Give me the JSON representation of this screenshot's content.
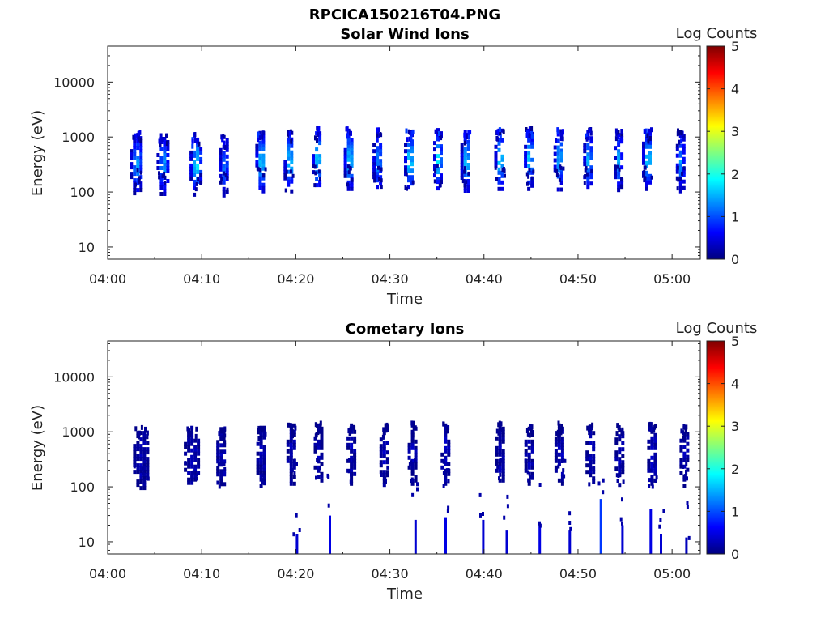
{
  "figure_title": "RPCICA150216T04.PNG",
  "colorbar": {
    "label": "Log Counts",
    "min": 0,
    "max": 5,
    "tick_labels": [
      "0",
      "1",
      "2",
      "3",
      "4",
      "5"
    ],
    "colormap": "jet",
    "stops": [
      "#00007f",
      "#0000ff",
      "#0080ff",
      "#00ffff",
      "#80ff80",
      "#ffff00",
      "#ff8000",
      "#ff0000",
      "#7f0000"
    ]
  },
  "chart_data": [
    {
      "type": "heatmap",
      "title": "Solar Wind Ions",
      "xlabel": "Time",
      "ylabel": "Energy (eV)",
      "x_range_minutes": [
        0,
        63
      ],
      "x_tick_labels": [
        "04:00",
        "04:10",
        "04:20",
        "04:30",
        "04:40",
        "04:50",
        "05:00"
      ],
      "y_scale": "log",
      "ylim": [
        6,
        45000
      ],
      "y_tick_labels": [
        "10",
        "100",
        "1000",
        "10000"
      ],
      "grid": false,
      "colorbar_label": "Log Counts",
      "z_range": [
        0,
        5
      ],
      "bursts": [
        {
          "t": 3.0,
          "e": 350,
          "level": 1.6,
          "span": 1.3
        },
        {
          "t": 5.8,
          "e": 340,
          "level": 1.5,
          "span": 1.2
        },
        {
          "t": 9.3,
          "e": 330,
          "level": 2.0,
          "span": 1.2
        },
        {
          "t": 12.3,
          "e": 320,
          "level": 1.4,
          "span": 0.9
        },
        {
          "t": 16.2,
          "e": 380,
          "level": 1.9,
          "span": 1.0
        },
        {
          "t": 19.2,
          "e": 380,
          "level": 1.9,
          "span": 1.0
        },
        {
          "t": 22.2,
          "e": 430,
          "level": 2.0,
          "span": 1.0
        },
        {
          "t": 25.6,
          "e": 420,
          "level": 1.9,
          "span": 1.0
        },
        {
          "t": 28.6,
          "e": 400,
          "level": 1.6,
          "span": 0.9
        },
        {
          "t": 32.0,
          "e": 400,
          "level": 2.0,
          "span": 1.0
        },
        {
          "t": 35.0,
          "e": 430,
          "level": 2.0,
          "span": 0.8
        },
        {
          "t": 38.0,
          "e": 390,
          "level": 1.9,
          "span": 1.0
        },
        {
          "t": 41.6,
          "e": 420,
          "level": 2.0,
          "span": 1.0
        },
        {
          "t": 44.7,
          "e": 420,
          "level": 1.9,
          "span": 0.9
        },
        {
          "t": 47.9,
          "e": 410,
          "level": 1.8,
          "span": 1.0
        },
        {
          "t": 51.0,
          "e": 400,
          "level": 1.7,
          "span": 0.9
        },
        {
          "t": 54.2,
          "e": 400,
          "level": 1.6,
          "span": 0.8
        },
        {
          "t": 57.3,
          "e": 420,
          "level": 1.9,
          "span": 1.0
        },
        {
          "t": 60.8,
          "e": 380,
          "level": 1.5,
          "span": 0.8
        }
      ]
    },
    {
      "type": "heatmap",
      "title": "Cometary Ions",
      "xlabel": "Time",
      "ylabel": "Energy (eV)",
      "x_range_minutes": [
        0,
        63
      ],
      "x_tick_labels": [
        "04:00",
        "04:10",
        "04:20",
        "04:30",
        "04:40",
        "04:50",
        "05:00"
      ],
      "y_scale": "log",
      "ylim": [
        6,
        45000
      ],
      "y_tick_labels": [
        "10",
        "100",
        "1000",
        "10000"
      ],
      "grid": false,
      "colorbar_label": "Log Counts",
      "z_range": [
        0,
        5
      ],
      "bursts": [
        {
          "t": 3.5,
          "e": 350,
          "level": 0.3,
          "span": 1.6
        },
        {
          "t": 8.8,
          "e": 380,
          "level": 0.3,
          "span": 1.4
        },
        {
          "t": 12.0,
          "e": 360,
          "level": 0.3,
          "span": 0.9
        },
        {
          "t": 16.3,
          "e": 380,
          "level": 0.3,
          "span": 1.0
        },
        {
          "t": 19.5,
          "e": 420,
          "level": 0.3,
          "span": 1.0
        },
        {
          "t": 22.3,
          "e": 420,
          "level": 0.3,
          "span": 0.8
        },
        {
          "t": 25.8,
          "e": 420,
          "level": 0.3,
          "span": 0.8
        },
        {
          "t": 29.3,
          "e": 400,
          "level": 0.3,
          "span": 0.8
        },
        {
          "t": 32.3,
          "e": 420,
          "level": 0.3,
          "span": 0.8
        },
        {
          "t": 35.8,
          "e": 420,
          "level": 0.4,
          "span": 0.8
        },
        {
          "t": 41.6,
          "e": 420,
          "level": 0.3,
          "span": 0.8
        },
        {
          "t": 44.7,
          "e": 420,
          "level": 0.3,
          "span": 0.8
        },
        {
          "t": 48.0,
          "e": 420,
          "level": 0.4,
          "span": 1.0
        },
        {
          "t": 51.2,
          "e": 400,
          "level": 0.3,
          "span": 0.8
        },
        {
          "t": 54.3,
          "e": 400,
          "level": 0.3,
          "span": 0.8
        },
        {
          "t": 57.8,
          "e": 420,
          "level": 0.4,
          "span": 0.9
        },
        {
          "t": 61.2,
          "e": 380,
          "level": 0.3,
          "span": 0.8
        }
      ],
      "low_energy_streaks": [
        {
          "t": 20.0,
          "e_lo": 6,
          "e_hi": 14,
          "level": 0.4
        },
        {
          "t": 23.5,
          "e_lo": 6,
          "e_hi": 30,
          "level": 0.5
        },
        {
          "t": 32.6,
          "e_lo": 6,
          "e_hi": 25,
          "level": 0.4
        },
        {
          "t": 35.8,
          "e_lo": 6,
          "e_hi": 28,
          "level": 0.5
        },
        {
          "t": 39.8,
          "e_lo": 6,
          "e_hi": 25,
          "level": 0.4
        },
        {
          "t": 42.3,
          "e_lo": 6,
          "e_hi": 16,
          "level": 0.4
        },
        {
          "t": 45.8,
          "e_lo": 6,
          "e_hi": 20,
          "level": 0.5
        },
        {
          "t": 49.0,
          "e_lo": 6,
          "e_hi": 16,
          "level": 0.4
        },
        {
          "t": 52.3,
          "e_lo": 6,
          "e_hi": 60,
          "level": 0.9
        },
        {
          "t": 54.6,
          "e_lo": 6,
          "e_hi": 20,
          "level": 0.4
        },
        {
          "t": 57.6,
          "e_lo": 6,
          "e_hi": 40,
          "level": 0.5
        },
        {
          "t": 58.7,
          "e_lo": 6,
          "e_hi": 14,
          "level": 0.4
        },
        {
          "t": 61.4,
          "e_lo": 6,
          "e_hi": 12,
          "level": 0.3
        }
      ]
    }
  ]
}
